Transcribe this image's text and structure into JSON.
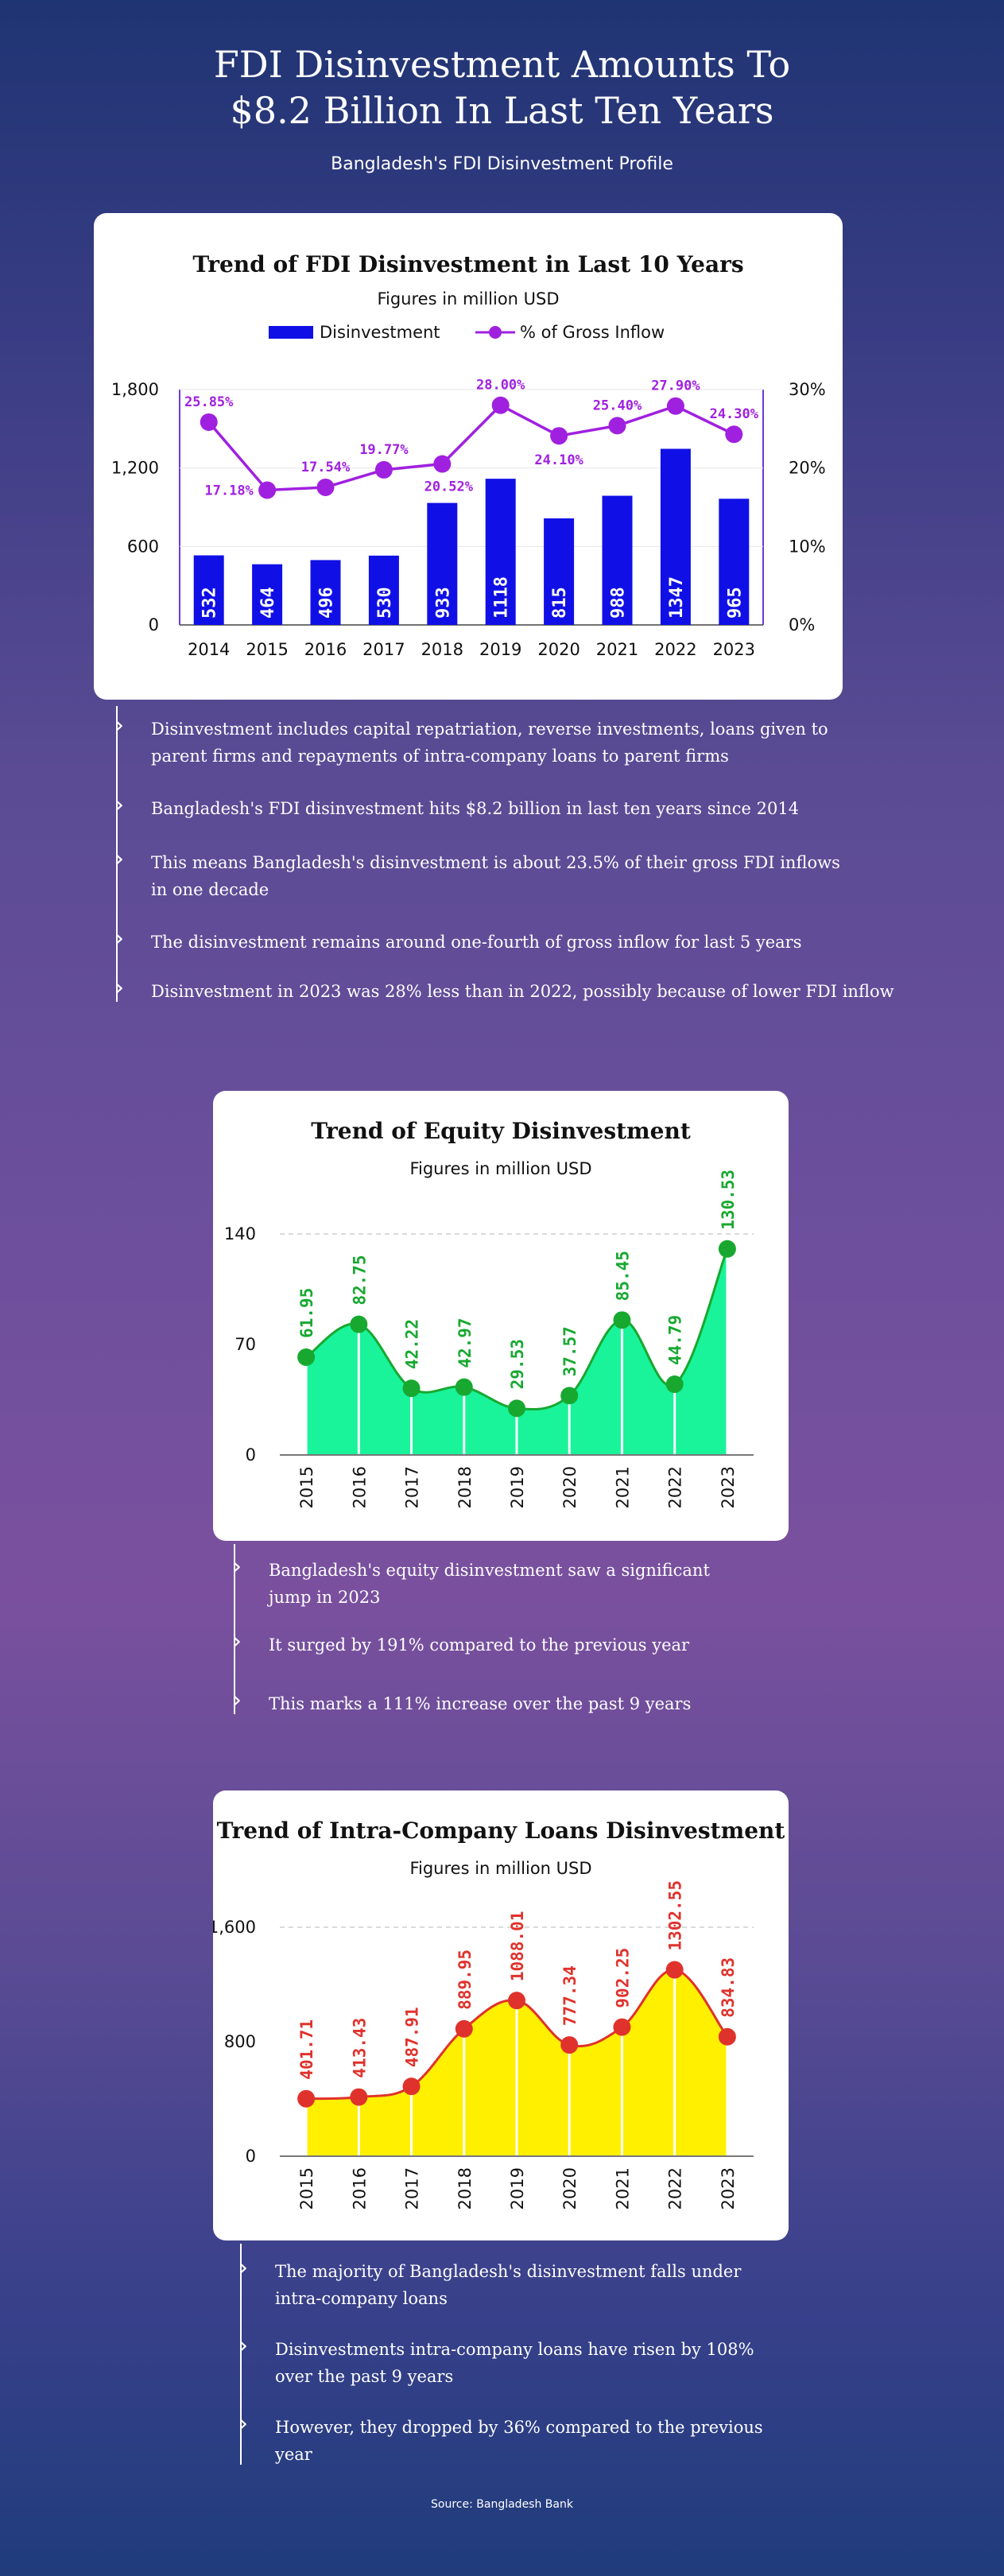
{
  "header": {
    "title_line1": "FDI Disinvestment Amounts To",
    "title_line2": "$8.2 Billion In Last Ten Years",
    "subtitle": "Bangladesh's FDI Disinvestment Profile"
  },
  "colors": {
    "bar": "#1010e6",
    "line": "#a020e0",
    "equity_fill": "#19f39a",
    "equity_line": "#18a830",
    "loan_fill": "#fff000",
    "loan_line": "#e0322c"
  },
  "chart_data": [
    {
      "type": "bar",
      "title": "Trend of FDI Disinvestment in Last 10 Years",
      "subtitle": "Figures in million USD",
      "categories": [
        "2014",
        "2015",
        "2016",
        "2017",
        "2018",
        "2019",
        "2020",
        "2021",
        "2022",
        "2023"
      ],
      "series": [
        {
          "name": "Disinvestment",
          "type": "bar",
          "axis": "left",
          "values": [
            532,
            464,
            496,
            530,
            933,
            1118,
            815,
            988,
            1347,
            965
          ]
        },
        {
          "name": "% of Gross Inflow",
          "type": "line",
          "axis": "right",
          "values": [
            25.85,
            17.18,
            17.54,
            19.77,
            20.52,
            28.0,
            24.1,
            25.4,
            27.9,
            24.3
          ],
          "labels": [
            "25.85%",
            "17.18%",
            "17.54%",
            "19.77%",
            "20.52%",
            "28.00%",
            "24.10%",
            "25.40%",
            "27.90%",
            "24.30%"
          ]
        }
      ],
      "ylim": [
        0,
        1800
      ],
      "yticks": [
        "0",
        "600",
        "1,200",
        "1,800"
      ],
      "y2lim": [
        0,
        30
      ],
      "y2ticks": [
        "0%",
        "10%",
        "20%",
        "30%"
      ],
      "legend": "top-center",
      "grid": false
    },
    {
      "type": "area",
      "title": "Trend of Equity Disinvestment",
      "subtitle": "Figures in million USD",
      "categories": [
        "2015",
        "2016",
        "2017",
        "2018",
        "2019",
        "2020",
        "2021",
        "2022",
        "2023"
      ],
      "values": [
        61.95,
        82.75,
        42.22,
        42.97,
        29.53,
        37.57,
        85.45,
        44.79,
        130.53
      ],
      "labels": [
        "61.95",
        "82.75",
        "42.22",
        "42.97",
        "29.53",
        "37.57",
        "85.45",
        "44.79",
        "130.53"
      ],
      "ylim": [
        0,
        140
      ],
      "yticks": [
        "0",
        "70",
        "140"
      ],
      "grid": "top-dashed"
    },
    {
      "type": "area",
      "title": "Trend of Intra-Company Loans Disinvestment",
      "subtitle": "Figures in million USD",
      "categories": [
        "2015",
        "2016",
        "2017",
        "2018",
        "2019",
        "2020",
        "2021",
        "2022",
        "2023"
      ],
      "values": [
        401.71,
        413.43,
        487.91,
        889.95,
        1088.01,
        777.34,
        902.25,
        1302.55,
        834.83
      ],
      "labels": [
        "401.71",
        "413.43",
        "487.91",
        "889.95",
        "1088.01",
        "777.34",
        "902.25",
        "1302.55",
        "834.83"
      ],
      "ylim": [
        0,
        1600
      ],
      "yticks": [
        "0",
        "800",
        "1,600"
      ],
      "grid": "top-dashed"
    }
  ],
  "bullets1": [
    "Disinvestment includes capital repatriation, reverse investments, loans given to\nparent firms and repayments of intra-company loans to parent firms",
    "Bangladesh's FDI disinvestment hits $8.2 billion in last ten years since 2014",
    "This means Bangladesh's disinvestment is about 23.5% of their gross FDI inflows\nin one decade",
    "The disinvestment remains around one-fourth of gross inflow for last 5 years",
    "Disinvestment in 2023 was 28% less than in 2022, possibly because of lower FDI inflow"
  ],
  "bullets2": [
    "Bangladesh's equity disinvestment saw a significant\njump in 2023",
    "It surged by 191% compared to the previous year",
    "This marks a 111% increase over the past 9 years"
  ],
  "bullets3": [
    "The majority of Bangladesh's disinvestment falls under\nintra-company loans",
    "Disinvestments intra-company loans have risen by 108%\nover the past 9 years",
    "However, they dropped by 36% compared to the previous\nyear"
  ],
  "source": "Source: Bangladesh Bank"
}
